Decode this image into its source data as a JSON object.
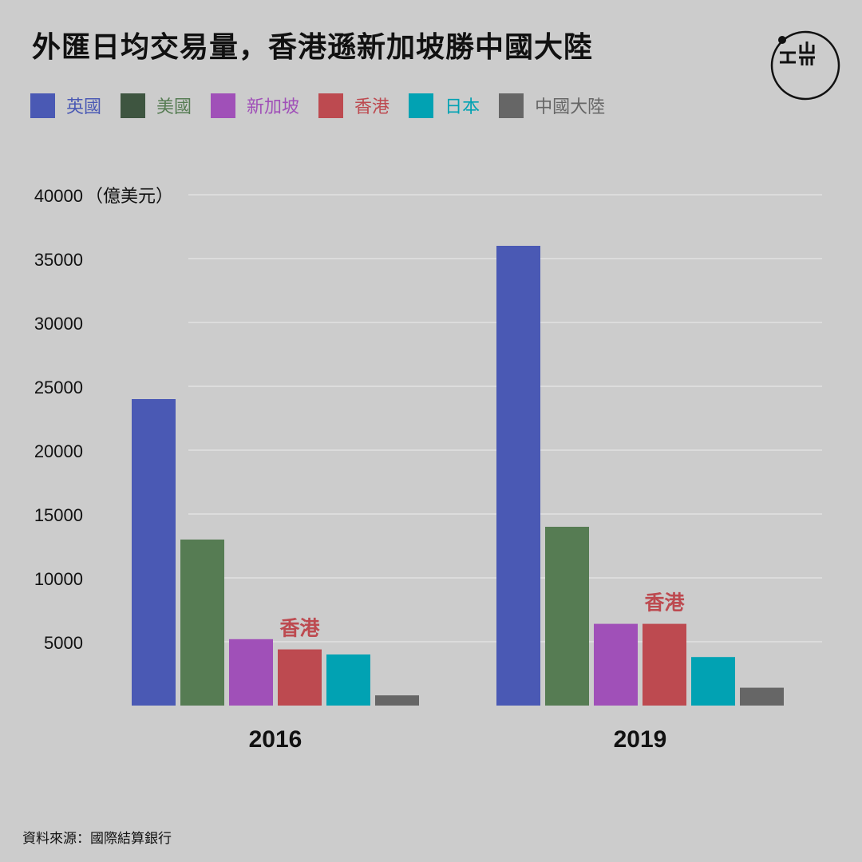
{
  "title": "外匯日均交易量，香港遜新加坡勝中國大陸",
  "source": "資料來源：國際結算銀行",
  "logo": {
    "icon": "端-logo-icon",
    "color": "#111111"
  },
  "legend": [
    {
      "label": "英國",
      "color": "#4a59b4"
    },
    {
      "label": "美國",
      "color": "#3e5540",
      "label_color": "#567c53"
    },
    {
      "label": "新加坡",
      "color": "#a050b8"
    },
    {
      "label": "香港",
      "color": "#bd4a50"
    },
    {
      "label": "日本",
      "color": "#01a2b3"
    },
    {
      "label": "中國大陸",
      "color": "#666666"
    }
  ],
  "chart_data": {
    "type": "bar",
    "categories": [
      "2016",
      "2019"
    ],
    "series": [
      {
        "name": "英國",
        "values": [
          24000,
          36000
        ],
        "color": "#4a59b4"
      },
      {
        "name": "美國",
        "values": [
          13000,
          14000
        ],
        "color": "#567c53"
      },
      {
        "name": "新加坡",
        "values": [
          5200,
          6400
        ],
        "color": "#a050b8"
      },
      {
        "name": "香港",
        "values": [
          4400,
          6400
        ],
        "color": "#bd4a50"
      },
      {
        "name": "日本",
        "values": [
          4000,
          3800
        ],
        "color": "#01a2b3"
      },
      {
        "name": "中國大陸",
        "values": [
          800,
          1400
        ],
        "color": "#666666"
      }
    ],
    "ylabel_unit": "（億美元）",
    "ylim": [
      0,
      40000
    ],
    "yticks": [
      5000,
      10000,
      15000,
      20000,
      25000,
      30000,
      35000,
      40000
    ],
    "grid": true,
    "legend_position": "top-left",
    "annotations": [
      {
        "text": "香港",
        "category": "2016",
        "series": "香港",
        "color": "#bd4a50"
      },
      {
        "text": "香港",
        "category": "2019",
        "series": "香港",
        "color": "#bd4a50"
      }
    ]
  }
}
